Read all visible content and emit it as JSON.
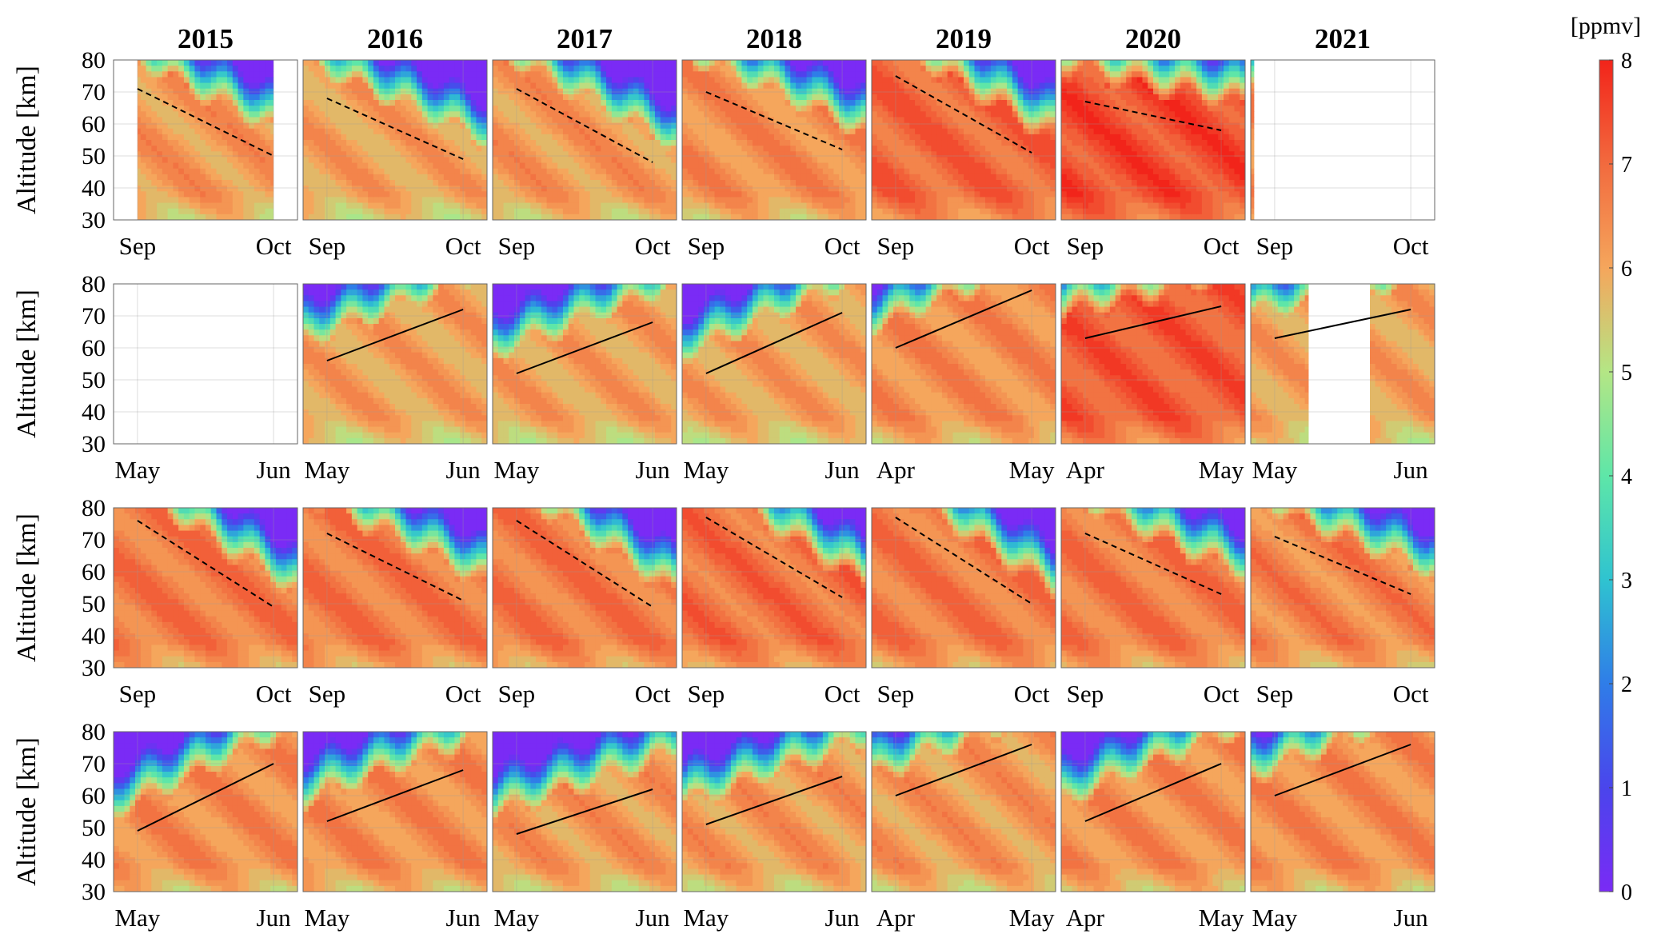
{
  "chart_data": {
    "type": "heatmap",
    "years": [
      "2015",
      "2016",
      "2017",
      "2018",
      "2019",
      "2020",
      "2021"
    ],
    "ylabel": "Altitude [km]",
    "ylim": [
      30,
      80
    ],
    "yticks": [
      "30",
      "40",
      "50",
      "60",
      "70",
      "80"
    ],
    "colorbar": {
      "unit": "[ppmv]",
      "range": [
        0,
        8
      ],
      "ticks": [
        "0",
        "1",
        "2",
        "3",
        "4",
        "5",
        "6",
        "7",
        "8"
      ]
    },
    "grid": true,
    "rows": [
      {
        "line_style": "dashed",
        "panels": [
          {
            "x_ticks": [
              "Sep",
              "Oct"
            ],
            "line": [
              [
                0,
                71
              ],
              [
                1,
                50
              ]
            ],
            "level": 0.78,
            "coverage": [
              [
                0,
                1
              ]
            ]
          },
          {
            "x_ticks": [
              "Sep",
              "Oct"
            ],
            "line": [
              [
                0,
                68
              ],
              [
                1,
                49
              ]
            ],
            "level": 0.76,
            "coverage": [
              [
                -0.2,
                1.3
              ]
            ]
          },
          {
            "x_ticks": [
              "Sep",
              "Oct"
            ],
            "line": [
              [
                0,
                71
              ],
              [
                1,
                48
              ]
            ],
            "level": 0.78,
            "coverage": [
              [
                -0.2,
                1.3
              ]
            ]
          },
          {
            "x_ticks": [
              "Sep",
              "Oct"
            ],
            "line": [
              [
                0,
                70
              ],
              [
                1,
                52
              ]
            ],
            "level": 0.8,
            "coverage": [
              [
                -0.2,
                1.3
              ]
            ]
          },
          {
            "x_ticks": [
              "Sep",
              "Oct"
            ],
            "line": [
              [
                0,
                75
              ],
              [
                1,
                51
              ]
            ],
            "level": 0.88,
            "coverage": [
              [
                -0.2,
                1.3
              ]
            ]
          },
          {
            "x_ticks": [
              "Sep",
              "Oct"
            ],
            "line": [
              [
                0,
                67
              ],
              [
                1,
                58
              ]
            ],
            "level": 0.93,
            "coverage": [
              [
                -0.2,
                1.3
              ]
            ]
          },
          {
            "x_ticks": [
              "Sep",
              "Oct"
            ],
            "line": null,
            "level": 0.8,
            "coverage": [
              [
                -0.2,
                -0.15
              ]
            ]
          }
        ]
      },
      {
        "line_style": "solid",
        "panels": [
          {
            "x_ticks": [
              "May",
              "Jun"
            ],
            "line": null,
            "level": 0.75,
            "coverage": []
          },
          {
            "x_ticks": [
              "May",
              "Jun"
            ],
            "line": [
              [
                0,
                56
              ],
              [
                1,
                72
              ]
            ],
            "level": 0.76,
            "coverage": [
              [
                -0.2,
                1.3
              ]
            ]
          },
          {
            "x_ticks": [
              "May",
              "Jun"
            ],
            "line": [
              [
                0,
                52
              ],
              [
                1,
                68
              ]
            ],
            "level": 0.76,
            "coverage": [
              [
                -0.2,
                1.3
              ]
            ]
          },
          {
            "x_ticks": [
              "May",
              "Jun"
            ],
            "line": [
              [
                0,
                52
              ],
              [
                1,
                71
              ]
            ],
            "level": 0.76,
            "coverage": [
              [
                -0.2,
                1.3
              ]
            ]
          },
          {
            "x_ticks": [
              "Apr",
              "May"
            ],
            "line": [
              [
                0,
                60
              ],
              [
                1,
                78
              ]
            ],
            "level": 0.8,
            "coverage": [
              [
                -0.2,
                1.3
              ]
            ]
          },
          {
            "x_ticks": [
              "Apr",
              "May"
            ],
            "line": [
              [
                0,
                63
              ],
              [
                1,
                73
              ]
            ],
            "level": 0.9,
            "coverage": [
              [
                -0.2,
                1.3
              ]
            ]
          },
          {
            "x_ticks": [
              "May",
              "Jun"
            ],
            "line": [
              [
                0,
                63
              ],
              [
                1,
                72
              ]
            ],
            "level": 0.76,
            "coverage": [
              [
                -0.2,
                0.25
              ],
              [
                0.7,
                1.3
              ]
            ]
          }
        ]
      },
      {
        "line_style": "dashed",
        "panels": [
          {
            "x_ticks": [
              "Sep",
              "Oct"
            ],
            "line": [
              [
                0,
                76
              ],
              [
                1,
                49
              ]
            ],
            "level": 0.84,
            "coverage": [
              [
                -0.2,
                1.3
              ]
            ]
          },
          {
            "x_ticks": [
              "Sep",
              "Oct"
            ],
            "line": [
              [
                0,
                72
              ],
              [
                1,
                51
              ]
            ],
            "level": 0.84,
            "coverage": [
              [
                -0.2,
                1.3
              ]
            ]
          },
          {
            "x_ticks": [
              "Sep",
              "Oct"
            ],
            "line": [
              [
                0,
                76
              ],
              [
                1,
                49
              ]
            ],
            "level": 0.84,
            "coverage": [
              [
                -0.2,
                1.3
              ]
            ]
          },
          {
            "x_ticks": [
              "Sep",
              "Oct"
            ],
            "line": [
              [
                0,
                77
              ],
              [
                1,
                52
              ]
            ],
            "level": 0.86,
            "coverage": [
              [
                -0.2,
                1.3
              ]
            ]
          },
          {
            "x_ticks": [
              "Sep",
              "Oct"
            ],
            "line": [
              [
                0,
                77
              ],
              [
                1,
                50
              ]
            ],
            "level": 0.84,
            "coverage": [
              [
                -0.2,
                1.3
              ]
            ]
          },
          {
            "x_ticks": [
              "Sep",
              "Oct"
            ],
            "line": [
              [
                0,
                72
              ],
              [
                1,
                53
              ]
            ],
            "level": 0.84,
            "coverage": [
              [
                -0.2,
                1.3
              ]
            ]
          },
          {
            "x_ticks": [
              "Sep",
              "Oct"
            ],
            "line": [
              [
                0,
                71
              ],
              [
                1,
                53
              ]
            ],
            "level": 0.82,
            "coverage": [
              [
                -0.2,
                1.3
              ]
            ]
          }
        ]
      },
      {
        "line_style": "solid",
        "panels": [
          {
            "x_ticks": [
              "May",
              "Jun"
            ],
            "line": [
              [
                0,
                49
              ],
              [
                1,
                70
              ]
            ],
            "level": 0.8,
            "coverage": [
              [
                -0.2,
                1.3
              ]
            ]
          },
          {
            "x_ticks": [
              "May",
              "Jun"
            ],
            "line": [
              [
                0,
                52
              ],
              [
                1,
                68
              ]
            ],
            "level": 0.8,
            "coverage": [
              [
                -0.2,
                1.3
              ]
            ]
          },
          {
            "x_ticks": [
              "May",
              "Jun"
            ],
            "line": [
              [
                0,
                48
              ],
              [
                1,
                62
              ]
            ],
            "level": 0.78,
            "coverage": [
              [
                -0.2,
                1.3
              ]
            ]
          },
          {
            "x_ticks": [
              "May",
              "Jun"
            ],
            "line": [
              [
                0,
                51
              ],
              [
                1,
                66
              ]
            ],
            "level": 0.78,
            "coverage": [
              [
                -0.2,
                1.3
              ]
            ]
          },
          {
            "x_ticks": [
              "Apr",
              "May"
            ],
            "line": [
              [
                0,
                60
              ],
              [
                1,
                76
              ]
            ],
            "level": 0.78,
            "coverage": [
              [
                -0.2,
                1.3
              ]
            ]
          },
          {
            "x_ticks": [
              "Apr",
              "May"
            ],
            "line": [
              [
                0,
                52
              ],
              [
                1,
                70
              ]
            ],
            "level": 0.8,
            "coverage": [
              [
                -0.2,
                1.3
              ]
            ]
          },
          {
            "x_ticks": [
              "May",
              "Jun"
            ],
            "line": [
              [
                0,
                60
              ],
              [
                1,
                76
              ]
            ],
            "level": 0.8,
            "coverage": [
              [
                -0.2,
                1.3
              ]
            ]
          }
        ]
      }
    ]
  }
}
